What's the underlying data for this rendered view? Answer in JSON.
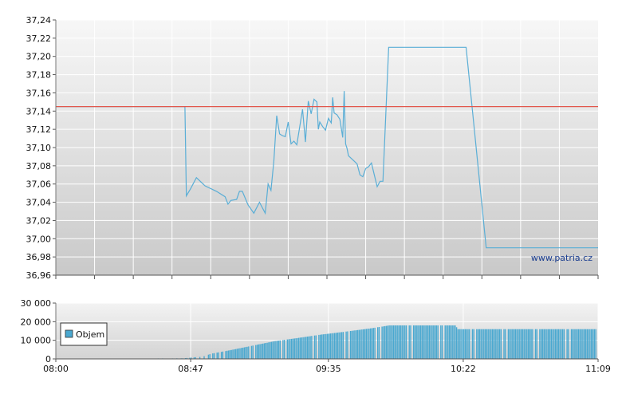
{
  "watermark": "www.patria.cz",
  "chart_data": [
    {
      "type": "line",
      "ylim": [
        36.96,
        37.24
      ],
      "y_ticks": [
        "37,24",
        "37,22",
        "37,20",
        "37,18",
        "37,16",
        "37,14",
        "37,12",
        "37,10",
        "37,08",
        "37,06",
        "37,04",
        "37,02",
        "37,00",
        "36,98",
        "36,96"
      ],
      "xlim_minutes": [
        480,
        669
      ],
      "grid": true,
      "series": [
        {
          "color": "#5aaed6",
          "x_minutes": [
            480,
            525,
            525.5,
            527,
            529,
            532,
            536,
            539,
            540,
            541,
            543,
            544,
            545,
            547,
            549,
            551,
            553,
            554,
            555,
            556,
            557,
            558,
            559,
            560,
            561,
            562,
            563,
            564,
            566,
            567,
            568,
            569,
            570,
            571,
            571.5,
            572,
            573,
            574,
            575,
            576,
            576.5,
            577,
            578,
            579,
            580,
            580.5,
            581,
            581.5,
            582,
            583,
            584,
            585,
            586,
            587,
            588,
            589,
            590,
            591,
            592,
            593,
            594,
            596,
            597,
            598,
            599,
            599.5,
            600,
            601,
            602,
            603,
            604,
            606,
            606.5,
            607,
            619,
            620,
            621,
            621.5,
            623,
            630,
            632,
            669
          ],
          "values": [
            37.145,
            37.145,
            37.047,
            37.055,
            37.067,
            37.058,
            37.052,
            37.046,
            37.038,
            37.042,
            37.043,
            37.052,
            37.052,
            37.037,
            37.028,
            37.04,
            37.028,
            37.06,
            37.053,
            37.085,
            37.135,
            37.115,
            37.113,
            37.112,
            37.128,
            37.104,
            37.107,
            37.103,
            37.142,
            37.106,
            37.151,
            37.137,
            37.153,
            37.15,
            37.12,
            37.128,
            37.123,
            37.119,
            37.132,
            37.127,
            37.155,
            37.138,
            37.136,
            37.131,
            37.111,
            37.162,
            37.104,
            37.099,
            37.091,
            37.088,
            37.085,
            37.082,
            37.07,
            37.068,
            37.077,
            37.079,
            37.083,
            37.07,
            37.057,
            37.063,
            37.063,
            37.21,
            37.21,
            37.21,
            37.21,
            37.21,
            37.21,
            37.21,
            37.21,
            37.21,
            37.21,
            37.21,
            37.21,
            37.21,
            37.21,
            37.21,
            37.21,
            37.21,
            37.21,
            36.99,
            36.99,
            36.99
          ]
        },
        {
          "color": "#e2574c",
          "x_minutes": [
            480,
            669
          ],
          "values": [
            37.145,
            37.145
          ]
        }
      ]
    },
    {
      "type": "bar",
      "ylim": [
        0,
        30000
      ],
      "y_ticks": [
        "30 000",
        "20 000",
        "10 000",
        "0"
      ],
      "x_ticks": [
        "08:00",
        "08:47",
        "09:35",
        "10:22",
        "11:09"
      ],
      "x_tick_minutes": [
        480,
        527,
        575,
        622,
        669
      ],
      "legend": {
        "label": "Objem",
        "position": "left",
        "color": "#4aa8d0"
      },
      "volume_profile": [
        [
          480,
          0
        ],
        [
          524,
          300
        ],
        [
          531,
          1200
        ],
        [
          534,
          2800
        ],
        [
          540,
          4500
        ],
        [
          548,
          7000
        ],
        [
          556,
          9500
        ],
        [
          564,
          11200
        ],
        [
          572,
          13000
        ],
        [
          580,
          14500
        ],
        [
          590,
          16500
        ],
        [
          596,
          18000
        ],
        [
          600,
          18000
        ],
        [
          607,
          18000
        ],
        [
          610,
          18000
        ],
        [
          619,
          18000
        ],
        [
          620,
          16000
        ],
        [
          669,
          16000
        ]
      ]
    }
  ]
}
